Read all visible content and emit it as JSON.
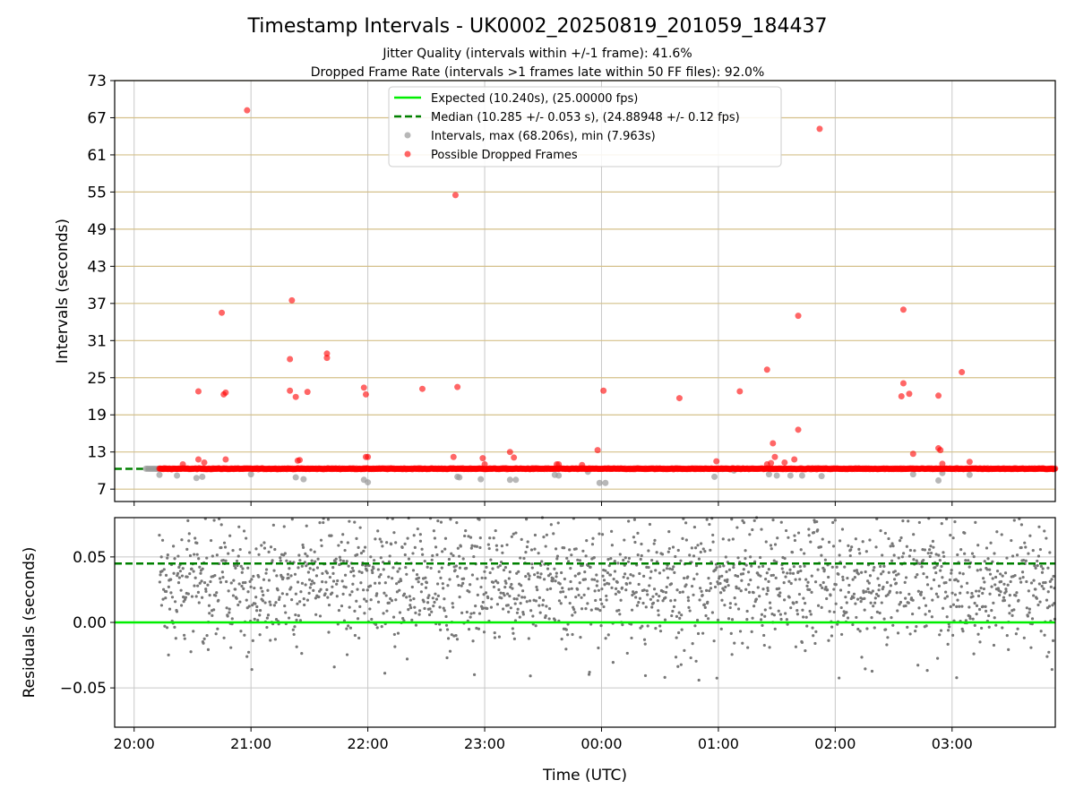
{
  "chart_data": [
    {
      "type": "scatter",
      "title": "Timestamp Intervals - UK0002_20250819_201059_184437",
      "subtitle_lines": [
        "Jitter Quality (intervals within +/-1 frame): 41.6%",
        "Dropped Frame Rate (intervals >1 frames late within 50 FF files): 92.0%"
      ],
      "xlabel": "",
      "ylabel": "Intervals (seconds)",
      "x_domain": [
        "19:50",
        "03:53"
      ],
      "ylim": [
        5,
        73
      ],
      "y_ticks": [
        7,
        13,
        19,
        25,
        31,
        37,
        43,
        49,
        55,
        61,
        67,
        73
      ],
      "grid": "y major (tan) and x (gray)",
      "legend": {
        "placement": "top-center",
        "entries": [
          {
            "label": "Expected (10.240s), (25.00000 fps)",
            "style": "solid-line",
            "color": "#00ee00"
          },
          {
            "label": "Median (10.285 +/- 0.053 s), (24.88948 +/- 0.12 fps)",
            "style": "dashed-line",
            "color": "#008000"
          },
          {
            "label": "Intervals, max (68.206s), min (7.963s)",
            "style": "marker",
            "color": "#999999"
          },
          {
            "label": "Possible Dropped Frames",
            "style": "marker",
            "color": "#ff0000"
          }
        ]
      },
      "expected_line": 10.24,
      "median_line": 10.285,
      "dense_band": {
        "from": "20:13",
        "to": "03:53",
        "value": 10.29
      },
      "gray_band_segments": [
        [
          "20:06",
          "20:13"
        ],
        [
          "01:00",
          "01:07"
        ]
      ],
      "dropped_points": [
        {
          "t": "20:25",
          "v": 11.0
        },
        {
          "t": "20:33",
          "v": 22.8
        },
        {
          "t": "20:33",
          "v": 11.8
        },
        {
          "t": "20:36",
          "v": 11.3
        },
        {
          "t": "20:45",
          "v": 35.5
        },
        {
          "t": "20:46",
          "v": 22.3
        },
        {
          "t": "20:47",
          "v": 22.6
        },
        {
          "t": "20:47",
          "v": 11.8
        },
        {
          "t": "20:58",
          "v": 68.2
        },
        {
          "t": "21:20",
          "v": 28.0
        },
        {
          "t": "21:20",
          "v": 22.9
        },
        {
          "t": "21:21",
          "v": 37.5
        },
        {
          "t": "21:23",
          "v": 21.9
        },
        {
          "t": "21:24",
          "v": 11.6
        },
        {
          "t": "21:25",
          "v": 11.7
        },
        {
          "t": "21:29",
          "v": 22.7
        },
        {
          "t": "21:39",
          "v": 28.9
        },
        {
          "t": "21:39",
          "v": 28.2
        },
        {
          "t": "21:58",
          "v": 23.4
        },
        {
          "t": "21:59",
          "v": 22.3
        },
        {
          "t": "21:59",
          "v": 12.2
        },
        {
          "t": "22:00",
          "v": 12.2
        },
        {
          "t": "22:28",
          "v": 23.2
        },
        {
          "t": "22:44",
          "v": 12.2
        },
        {
          "t": "22:45",
          "v": 54.5
        },
        {
          "t": "22:46",
          "v": 23.5
        },
        {
          "t": "22:59",
          "v": 12.0
        },
        {
          "t": "23:00",
          "v": 11.0
        },
        {
          "t": "23:13",
          "v": 13.0
        },
        {
          "t": "23:15",
          "v": 12.1
        },
        {
          "t": "23:37",
          "v": 11.0
        },
        {
          "t": "23:38",
          "v": 11.0
        },
        {
          "t": "23:50",
          "v": 10.9
        },
        {
          "t": "23:58",
          "v": 13.3
        },
        {
          "t": "00:01",
          "v": 22.9
        },
        {
          "t": "00:40",
          "v": 21.7
        },
        {
          "t": "00:59",
          "v": 11.5
        },
        {
          "t": "01:11",
          "v": 22.8
        },
        {
          "t": "01:25",
          "v": 26.3
        },
        {
          "t": "01:25",
          "v": 11.0
        },
        {
          "t": "01:27",
          "v": 11.2
        },
        {
          "t": "01:28",
          "v": 14.4
        },
        {
          "t": "01:29",
          "v": 12.2
        },
        {
          "t": "01:34",
          "v": 11.3
        },
        {
          "t": "01:39",
          "v": 11.8
        },
        {
          "t": "01:41",
          "v": 16.6
        },
        {
          "t": "01:41",
          "v": 35.0
        },
        {
          "t": "01:52",
          "v": 65.2
        },
        {
          "t": "02:34",
          "v": 22.0
        },
        {
          "t": "02:35",
          "v": 36.0
        },
        {
          "t": "02:35",
          "v": 24.1
        },
        {
          "t": "02:38",
          "v": 22.4
        },
        {
          "t": "02:40",
          "v": 12.7
        },
        {
          "t": "02:53",
          "v": 22.1
        },
        {
          "t": "02:53",
          "v": 13.6
        },
        {
          "t": "02:54",
          "v": 13.3
        },
        {
          "t": "02:55",
          "v": 11.1
        },
        {
          "t": "03:05",
          "v": 25.9
        },
        {
          "t": "03:09",
          "v": 11.4
        }
      ],
      "interval_points_low": [
        {
          "t": "20:13",
          "v": 9.3
        },
        {
          "t": "20:22",
          "v": 9.2
        },
        {
          "t": "20:32",
          "v": 8.8
        },
        {
          "t": "20:35",
          "v": 9.0
        },
        {
          "t": "21:00",
          "v": 9.4
        },
        {
          "t": "21:23",
          "v": 8.9
        },
        {
          "t": "21:27",
          "v": 8.6
        },
        {
          "t": "21:58",
          "v": 8.5
        },
        {
          "t": "22:00",
          "v": 8.1
        },
        {
          "t": "22:46",
          "v": 9.0
        },
        {
          "t": "22:47",
          "v": 8.9
        },
        {
          "t": "22:58",
          "v": 8.6
        },
        {
          "t": "23:13",
          "v": 8.5
        },
        {
          "t": "23:16",
          "v": 8.5
        },
        {
          "t": "23:36",
          "v": 9.3
        },
        {
          "t": "23:38",
          "v": 9.2
        },
        {
          "t": "23:53",
          "v": 9.8
        },
        {
          "t": "23:59",
          "v": 8.0
        },
        {
          "t": "00:02",
          "v": 8.0
        },
        {
          "t": "00:58",
          "v": 9.0
        },
        {
          "t": "01:08",
          "v": 10.0
        },
        {
          "t": "01:26",
          "v": 9.4
        },
        {
          "t": "01:30",
          "v": 9.2
        },
        {
          "t": "01:37",
          "v": 9.2
        },
        {
          "t": "01:43",
          "v": 9.2
        },
        {
          "t": "01:53",
          "v": 9.1
        },
        {
          "t": "02:40",
          "v": 9.4
        },
        {
          "t": "02:53",
          "v": 8.4
        },
        {
          "t": "02:55",
          "v": 9.6
        },
        {
          "t": "03:09",
          "v": 9.3
        }
      ]
    },
    {
      "type": "scatter",
      "title": "",
      "xlabel": "Time (UTC)",
      "ylabel": "Residuals (seconds)",
      "x_domain": [
        "19:50",
        "03:53"
      ],
      "x_ticks": [
        "20:00",
        "21:00",
        "22:00",
        "23:00",
        "00:00",
        "01:00",
        "02:00",
        "03:00"
      ],
      "ylim": [
        -0.08,
        0.08
      ],
      "y_ticks": [
        -0.05,
        0.0,
        0.05
      ],
      "y_tick_labels": [
        "−0.05",
        "0.00",
        "0.05"
      ],
      "grid": true,
      "expected_residual": 0.0,
      "median_residual": 0.045,
      "residual_scatter": {
        "from": "20:13",
        "to": "03:53",
        "range": [
          -0.08,
          0.08
        ],
        "typical_center": 0.03
      },
      "color": "#777777"
    }
  ]
}
